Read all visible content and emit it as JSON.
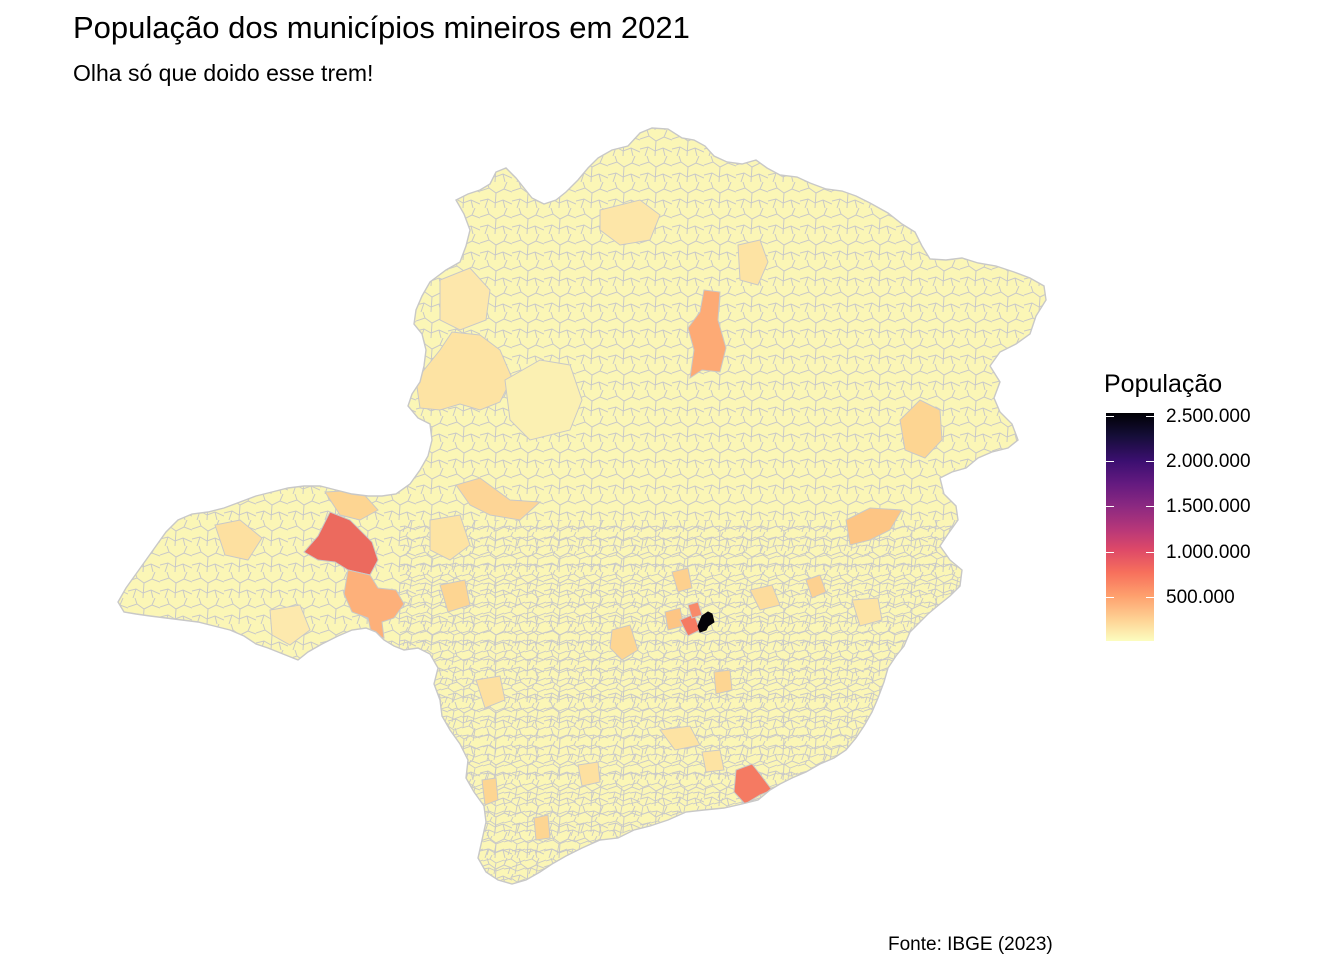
{
  "title": "População dos municípios mineiros em 2021",
  "subtitle": "Olha só que doido esse trem!",
  "caption": "Fonte: IBGE (2023)",
  "colors": {
    "base": "#fbf6b6",
    "border": "#c8c8c8",
    "light_orange": "#fde3a3",
    "orange": "#fdb07a",
    "salmon": "#f88a6a",
    "red": "#ec6a5e",
    "black": "#050308"
  },
  "legend": {
    "title": "População",
    "scale": "magma (reversed)",
    "domain": [
      0,
      2500000
    ],
    "ticks": [
      {
        "value": 2500000,
        "label": "2.500.000"
      },
      {
        "value": 2000000,
        "label": "2.000.000"
      },
      {
        "value": 1500000,
        "label": "1.500.000"
      },
      {
        "value": 1000000,
        "label": "1.000.000"
      },
      {
        "value": 500000,
        "label": "500.000"
      }
    ]
  }
}
